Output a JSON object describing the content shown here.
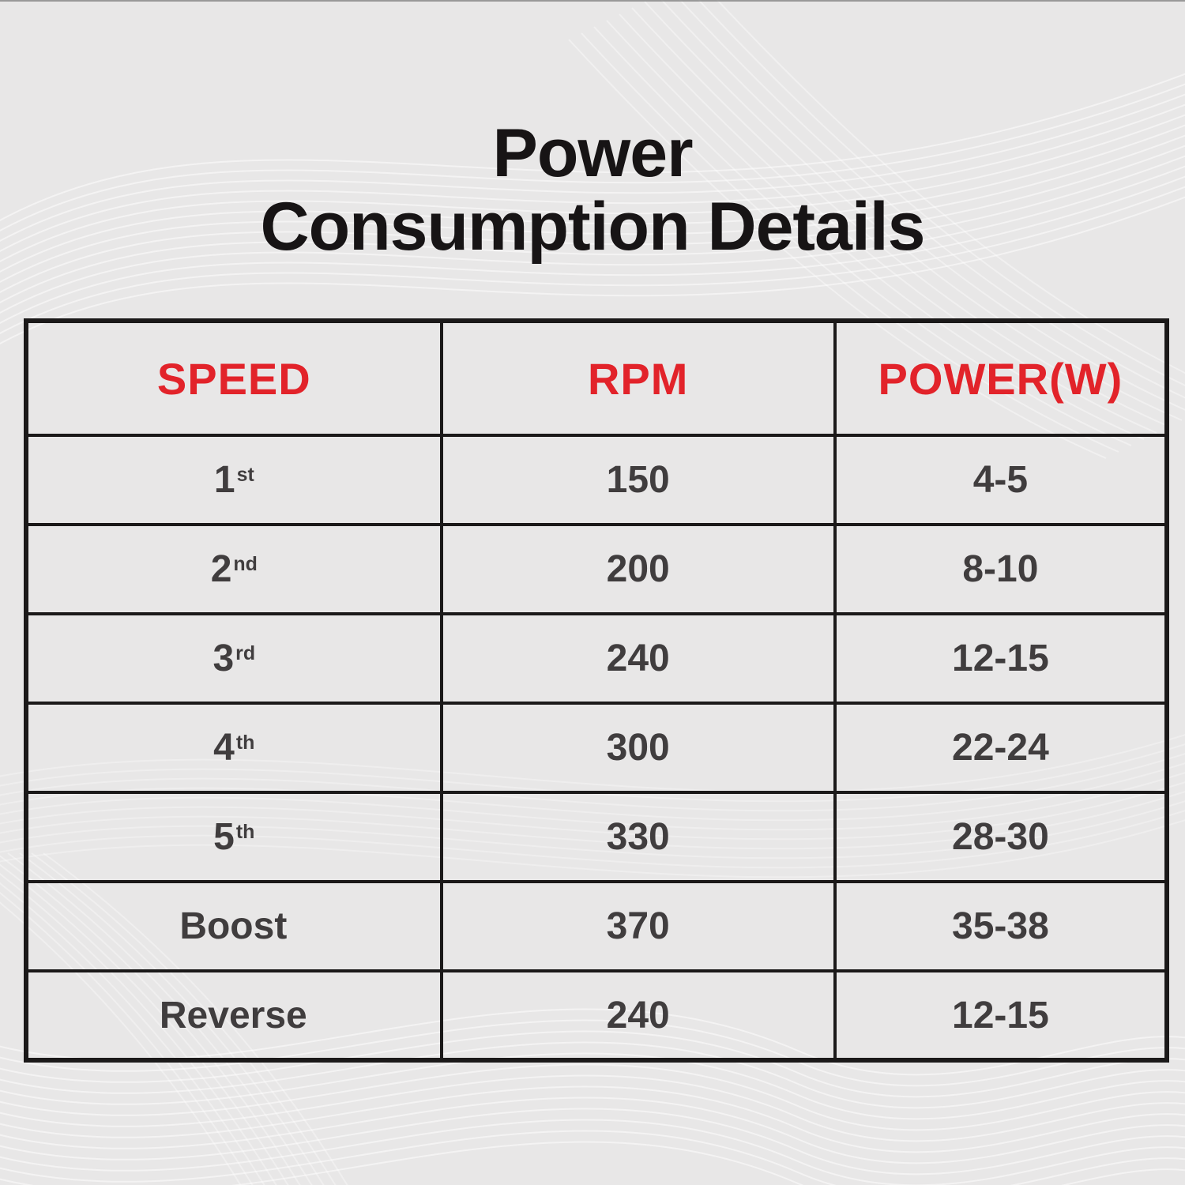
{
  "title": {
    "line1": "Power",
    "line2": "Consumption Details"
  },
  "table": {
    "columns": [
      "SPEED",
      "RPM",
      "POWER(W)"
    ],
    "rows": [
      {
        "speed": "1",
        "ordinal": "st",
        "rpm": "150",
        "power": "4-5"
      },
      {
        "speed": "2",
        "ordinal": "nd",
        "rpm": "200",
        "power": "8-10"
      },
      {
        "speed": "3",
        "ordinal": "rd",
        "rpm": "240",
        "power": "12-15"
      },
      {
        "speed": "4",
        "ordinal": "th",
        "rpm": "300",
        "power": "22-24"
      },
      {
        "speed": "5",
        "ordinal": "th",
        "rpm": "330",
        "power": "28-30"
      },
      {
        "speed": "Boost",
        "ordinal": "",
        "rpm": "370",
        "power": "35-38"
      },
      {
        "speed": "Reverse",
        "ordinal": "",
        "rpm": "240",
        "power": "12-15"
      }
    ]
  },
  "colors": {
    "background": "#e8e7e7",
    "header_red": "#e2232a",
    "cell_text": "#403d3e",
    "title_black": "#171415",
    "border_black": "#1b1919",
    "wave_line": "#f2f1f1"
  },
  "chart_data": {
    "type": "table",
    "title": "Power Consumption Details",
    "columns": [
      "SPEED",
      "RPM",
      "POWER(W)"
    ],
    "rows": [
      [
        "1st",
        150,
        "4-5"
      ],
      [
        "2nd",
        200,
        "8-10"
      ],
      [
        "3rd",
        240,
        "12-15"
      ],
      [
        "4th",
        300,
        "22-24"
      ],
      [
        "5th",
        330,
        "28-30"
      ],
      [
        "Boost",
        370,
        "35-38"
      ],
      [
        "Reverse",
        240,
        "12-15"
      ]
    ]
  }
}
